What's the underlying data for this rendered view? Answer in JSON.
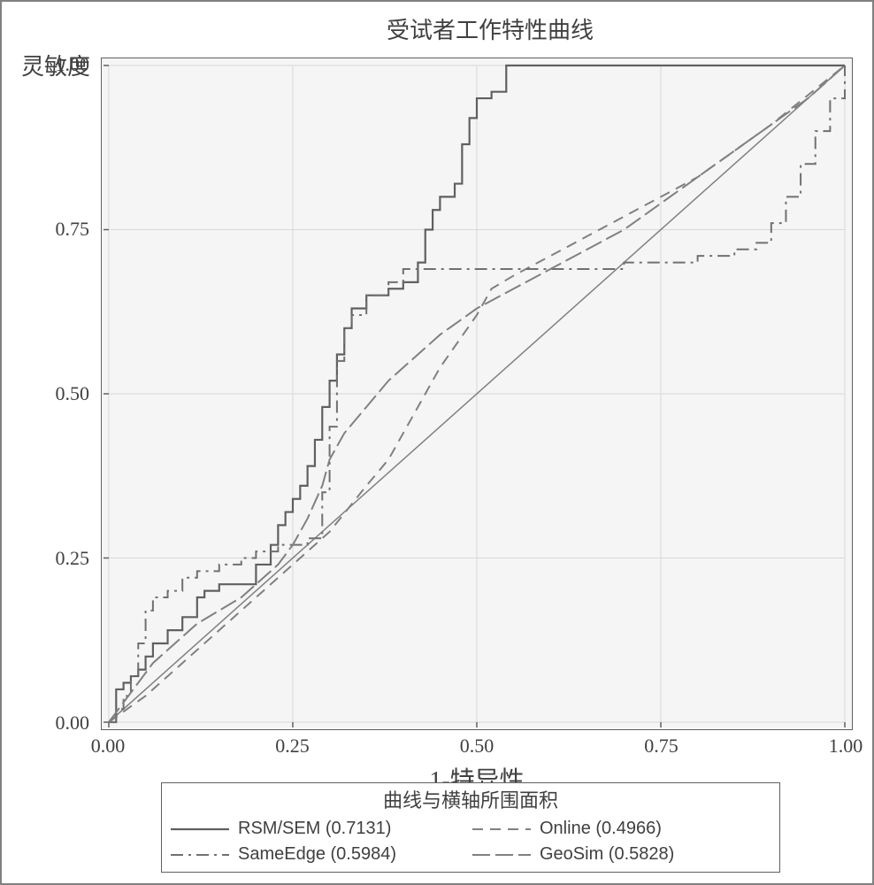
{
  "title": "受试者工作特性曲线",
  "ylabel": "灵敏度",
  "xlabel": "1-特异性",
  "legend_title": "曲线与横轴所围面积",
  "axes": {
    "xlim": [
      0.0,
      1.0
    ],
    "ylim": [
      0.0,
      1.0
    ],
    "xticks": [
      0.0,
      0.25,
      0.5,
      0.75,
      1.0
    ],
    "yticks": [
      0.0,
      0.25,
      0.5,
      0.75,
      1.0
    ],
    "xtick_labels": [
      "0.00",
      "0.25",
      "0.50",
      "0.75",
      "1.00"
    ],
    "ytick_labels": [
      "0.00",
      "0.25",
      "0.50",
      "0.75",
      "1.00"
    ],
    "background_color": "#f5f5f5",
    "grid_color": "#d8d8d8",
    "axis_color": "#606060",
    "tick_fontsize": 22,
    "label_fontsize": 26
  },
  "diagonal": {
    "color": "#808080",
    "width": 1.5
  },
  "series": [
    {
      "name": "RSM/SEM",
      "auc": "0.7131",
      "color": "#606060",
      "width": 2.2,
      "dash": "none",
      "legend_label": "RSM/SEM (0.7131)",
      "points": [
        [
          0.0,
          0.0
        ],
        [
          0.01,
          0.05
        ],
        [
          0.02,
          0.06
        ],
        [
          0.03,
          0.07
        ],
        [
          0.04,
          0.08
        ],
        [
          0.05,
          0.1
        ],
        [
          0.06,
          0.12
        ],
        [
          0.08,
          0.14
        ],
        [
          0.1,
          0.16
        ],
        [
          0.12,
          0.19
        ],
        [
          0.13,
          0.2
        ],
        [
          0.14,
          0.2
        ],
        [
          0.15,
          0.21
        ],
        [
          0.18,
          0.21
        ],
        [
          0.2,
          0.24
        ],
        [
          0.22,
          0.27
        ],
        [
          0.23,
          0.3
        ],
        [
          0.24,
          0.32
        ],
        [
          0.25,
          0.34
        ],
        [
          0.26,
          0.36
        ],
        [
          0.27,
          0.39
        ],
        [
          0.28,
          0.43
        ],
        [
          0.29,
          0.48
        ],
        [
          0.3,
          0.52
        ],
        [
          0.31,
          0.56
        ],
        [
          0.32,
          0.6
        ],
        [
          0.33,
          0.63
        ],
        [
          0.35,
          0.65
        ],
        [
          0.38,
          0.66
        ],
        [
          0.4,
          0.67
        ],
        [
          0.42,
          0.7
        ],
        [
          0.43,
          0.75
        ],
        [
          0.44,
          0.78
        ],
        [
          0.45,
          0.8
        ],
        [
          0.47,
          0.82
        ],
        [
          0.48,
          0.88
        ],
        [
          0.49,
          0.92
        ],
        [
          0.5,
          0.95
        ],
        [
          0.52,
          0.96
        ],
        [
          0.54,
          1.0
        ],
        [
          1.0,
          1.0
        ]
      ]
    },
    {
      "name": "Online",
      "auc": "0.4966",
      "color": "#808080",
      "width": 2.0,
      "dash": "12,8",
      "legend_label": "Online (0.4966)",
      "points": [
        [
          0.0,
          0.0
        ],
        [
          0.05,
          0.04
        ],
        [
          0.1,
          0.09
        ],
        [
          0.15,
          0.14
        ],
        [
          0.2,
          0.19
        ],
        [
          0.25,
          0.24
        ],
        [
          0.3,
          0.29
        ],
        [
          0.35,
          0.36
        ],
        [
          0.38,
          0.4
        ],
        [
          0.4,
          0.44
        ],
        [
          0.45,
          0.54
        ],
        [
          0.5,
          0.62
        ],
        [
          0.52,
          0.66
        ],
        [
          0.55,
          0.68
        ],
        [
          0.6,
          0.71
        ],
        [
          0.7,
          0.77
        ],
        [
          0.8,
          0.83
        ],
        [
          0.9,
          0.91
        ],
        [
          1.0,
          1.0
        ]
      ]
    },
    {
      "name": "SameEdge",
      "auc": "0.5984",
      "color": "#707070",
      "width": 2.0,
      "dash": "14,6,3,6",
      "legend_label": "SameEdge (0.5984)",
      "points": [
        [
          0.0,
          0.0
        ],
        [
          0.01,
          0.02
        ],
        [
          0.02,
          0.04
        ],
        [
          0.03,
          0.07
        ],
        [
          0.04,
          0.12
        ],
        [
          0.05,
          0.17
        ],
        [
          0.06,
          0.19
        ],
        [
          0.08,
          0.2
        ],
        [
          0.1,
          0.22
        ],
        [
          0.12,
          0.23
        ],
        [
          0.15,
          0.24
        ],
        [
          0.18,
          0.25
        ],
        [
          0.2,
          0.26
        ],
        [
          0.23,
          0.27
        ],
        [
          0.25,
          0.27
        ],
        [
          0.27,
          0.28
        ],
        [
          0.29,
          0.35
        ],
        [
          0.3,
          0.45
        ],
        [
          0.31,
          0.55
        ],
        [
          0.32,
          0.6
        ],
        [
          0.33,
          0.62
        ],
        [
          0.35,
          0.65
        ],
        [
          0.38,
          0.67
        ],
        [
          0.4,
          0.69
        ],
        [
          0.45,
          0.69
        ],
        [
          0.5,
          0.69
        ],
        [
          0.6,
          0.69
        ],
        [
          0.7,
          0.7
        ],
        [
          0.8,
          0.71
        ],
        [
          0.85,
          0.72
        ],
        [
          0.88,
          0.73
        ],
        [
          0.9,
          0.76
        ],
        [
          0.92,
          0.8
        ],
        [
          0.94,
          0.85
        ],
        [
          0.96,
          0.9
        ],
        [
          0.98,
          0.95
        ],
        [
          1.0,
          1.0
        ]
      ]
    },
    {
      "name": "GeoSim",
      "auc": "0.5828",
      "color": "#808080",
      "width": 2.0,
      "dash": "20,6",
      "legend_label": "GeoSim (0.5828)",
      "points": [
        [
          0.0,
          0.0
        ],
        [
          0.02,
          0.03
        ],
        [
          0.04,
          0.06
        ],
        [
          0.06,
          0.09
        ],
        [
          0.08,
          0.11
        ],
        [
          0.1,
          0.13
        ],
        [
          0.12,
          0.15
        ],
        [
          0.15,
          0.17
        ],
        [
          0.18,
          0.19
        ],
        [
          0.2,
          0.21
        ],
        [
          0.23,
          0.24
        ],
        [
          0.25,
          0.27
        ],
        [
          0.27,
          0.31
        ],
        [
          0.29,
          0.36
        ],
        [
          0.3,
          0.4
        ],
        [
          0.32,
          0.44
        ],
        [
          0.35,
          0.48
        ],
        [
          0.38,
          0.52
        ],
        [
          0.42,
          0.56
        ],
        [
          0.45,
          0.59
        ],
        [
          0.5,
          0.63
        ],
        [
          0.55,
          0.66
        ],
        [
          0.6,
          0.69
        ],
        [
          0.65,
          0.72
        ],
        [
          0.7,
          0.75
        ],
        [
          0.75,
          0.79
        ],
        [
          0.8,
          0.83
        ],
        [
          0.85,
          0.87
        ],
        [
          0.9,
          0.91
        ],
        [
          0.95,
          0.95
        ],
        [
          1.0,
          1.0
        ]
      ]
    }
  ]
}
